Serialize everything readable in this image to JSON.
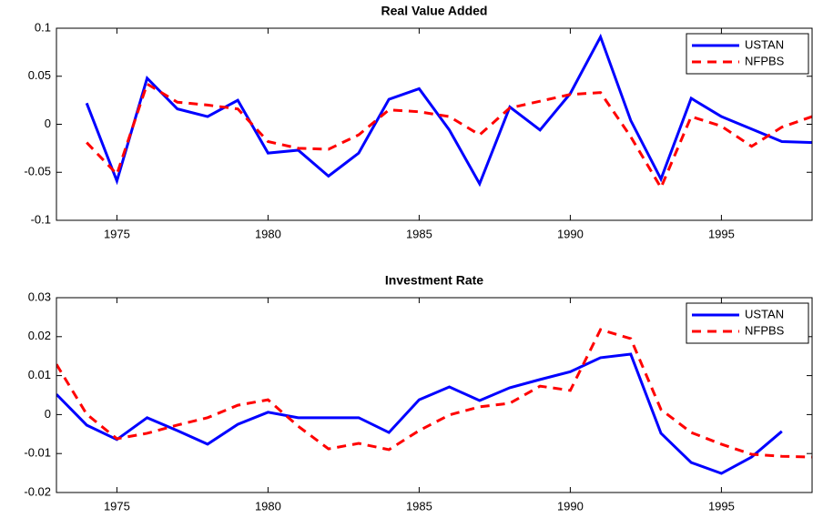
{
  "chart_data": [
    {
      "type": "line",
      "title": "Real Value Added",
      "x": [
        1974,
        1975,
        1976,
        1977,
        1978,
        1979,
        1980,
        1981,
        1982,
        1983,
        1984,
        1985,
        1986,
        1987,
        1988,
        1989,
        1990,
        1991,
        1992,
        1993,
        1994,
        1995,
        1996,
        1997,
        1998
      ],
      "series": [
        {
          "name": "USTAN",
          "color": "#0000ff",
          "style": "solid",
          "values": [
            0.022,
            -0.059,
            0.048,
            0.016,
            0.008,
            0.025,
            -0.03,
            -0.027,
            -0.054,
            -0.03,
            0.026,
            0.037,
            -0.006,
            -0.062,
            0.018,
            -0.006,
            0.032,
            0.091,
            0.004,
            -0.057,
            0.027,
            0.008,
            -0.005,
            -0.018,
            -0.019
          ]
        },
        {
          "name": "NFPBS",
          "color": "#ff0000",
          "style": "dashed",
          "values": [
            -0.019,
            -0.052,
            0.042,
            0.023,
            0.02,
            0.016,
            -0.018,
            -0.025,
            -0.026,
            -0.011,
            0.015,
            0.013,
            0.008,
            -0.011,
            0.017,
            0.024,
            0.031,
            0.033,
            -0.013,
            -0.066,
            0.008,
            -0.002,
            -0.023,
            -0.003,
            0.008
          ]
        }
      ],
      "xlim": [
        1973,
        1998
      ],
      "xticks": [
        1975,
        1980,
        1985,
        1990,
        1995
      ],
      "ylim": [
        -0.1,
        0.1
      ],
      "yticks": [
        -0.1,
        -0.05,
        0,
        0.05,
        0.1
      ],
      "legend": "upper right"
    },
    {
      "type": "line",
      "title": "Investment Rate",
      "x": [
        1973,
        1974,
        1975,
        1976,
        1977,
        1978,
        1979,
        1980,
        1981,
        1982,
        1983,
        1984,
        1985,
        1986,
        1987,
        1988,
        1989,
        1990,
        1991,
        1992,
        1993,
        1994,
        1995,
        1996,
        1997,
        1998
      ],
      "series": [
        {
          "name": "USTAN",
          "color": "#0000ff",
          "style": "solid",
          "values": [
            0.0052,
            -0.0027,
            -0.0064,
            -0.0008,
            -0.0041,
            -0.0076,
            -0.0025,
            0.0006,
            -0.0008,
            -0.0008,
            -0.0008,
            -0.0046,
            0.0038,
            0.0071,
            0.0036,
            0.0069,
            0.009,
            0.011,
            0.0146,
            0.0155,
            -0.0048,
            -0.0123,
            -0.0151,
            -0.0109,
            -0.0043,
            null
          ]
        },
        {
          "name": "NFPBS",
          "color": "#ff0000",
          "style": "dashed",
          "values": [
            0.0129,
            0.0001,
            -0.0062,
            -0.0048,
            -0.0027,
            -0.0008,
            0.0024,
            0.0038,
            -0.003,
            -0.0088,
            -0.0074,
            -0.009,
            -0.0041,
            -0.0001,
            0.002,
            0.0029,
            0.0073,
            0.0062,
            0.0218,
            0.0195,
            0.0013,
            -0.0046,
            -0.0076,
            -0.0102,
            -0.0107,
            -0.0109
          ]
        }
      ],
      "xlim": [
        1973,
        1998
      ],
      "xticks": [
        1975,
        1980,
        1985,
        1990,
        1995
      ],
      "ylim": [
        -0.02,
        0.03
      ],
      "yticks": [
        -0.02,
        -0.01,
        0,
        0.01,
        0.02,
        0.03
      ],
      "legend": "upper right"
    }
  ]
}
